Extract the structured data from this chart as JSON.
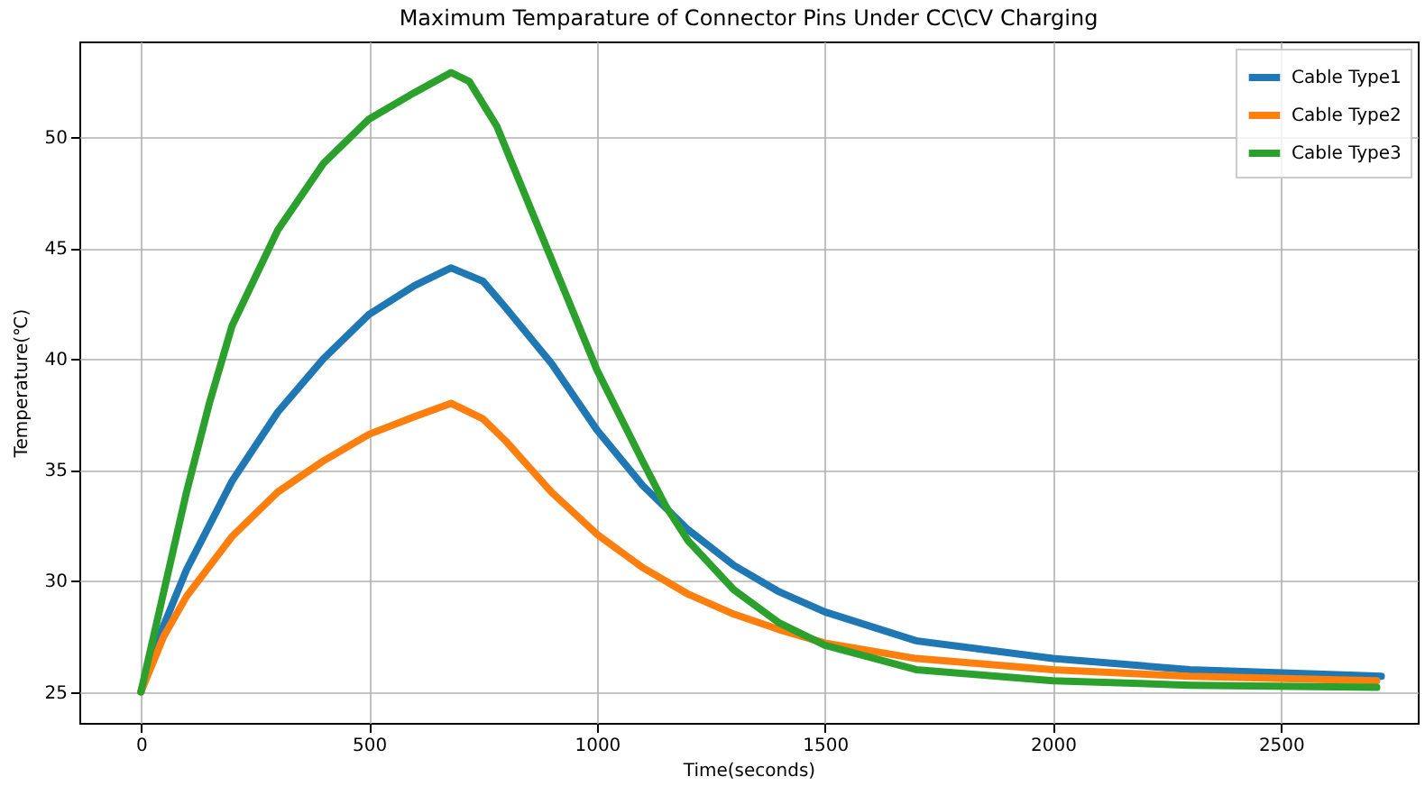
{
  "chart_data": {
    "type": "line",
    "title": "Maximum Temparature of Connector Pins Under CC\\CV Charging",
    "xlabel": "Time(seconds)",
    "ylabel": "Temperature(℃)",
    "xlim": [
      -135,
      2800
    ],
    "xticks": [
      0,
      500,
      1000,
      1500,
      2000,
      2500
    ],
    "ylim": [
      23.6,
      54.3
    ],
    "yticks": [
      25,
      30,
      35,
      40,
      45,
      50
    ],
    "grid": true,
    "legend": "top right",
    "series": [
      {
        "name": "Cable Type1",
        "color": "#1f77b4",
        "x": [
          0,
          50,
          100,
          200,
          300,
          400,
          500,
          600,
          680,
          750,
          800,
          900,
          1000,
          1100,
          1200,
          1300,
          1400,
          1500,
          1700,
          2000,
          2300,
          2720
        ],
        "values": [
          25,
          28,
          30.5,
          34.5,
          37.6,
          40,
          42,
          43.3,
          44.1,
          43.5,
          42.3,
          39.8,
          36.8,
          34.3,
          32.3,
          30.7,
          29.5,
          28.6,
          27.3,
          26.5,
          26,
          25.7
        ]
      },
      {
        "name": "Cable Type2",
        "color": "#ff7f0e",
        "x": [
          0,
          50,
          100,
          200,
          300,
          400,
          500,
          600,
          680,
          750,
          800,
          900,
          1000,
          1100,
          1200,
          1300,
          1400,
          1500,
          1700,
          2000,
          2300,
          2710
        ],
        "values": [
          25,
          27.5,
          29.3,
          32,
          34,
          35.4,
          36.6,
          37.4,
          38,
          37.3,
          36.3,
          34,
          32.1,
          30.6,
          29.4,
          28.5,
          27.8,
          27.2,
          26.5,
          26,
          25.7,
          25.5
        ]
      },
      {
        "name": "Cable Type3",
        "color": "#2ca02c",
        "x": [
          0,
          50,
          100,
          150,
          200,
          300,
          400,
          500,
          600,
          680,
          720,
          780,
          850,
          900,
          1000,
          1100,
          1150,
          1200,
          1300,
          1400,
          1500,
          1700,
          2000,
          2300,
          2710
        ],
        "values": [
          25,
          29.5,
          34,
          38,
          41.5,
          45.8,
          48.8,
          50.8,
          52,
          52.9,
          52.5,
          50.5,
          47,
          44.5,
          39.5,
          35.4,
          33.4,
          31.8,
          29.6,
          28.1,
          27.1,
          26,
          25.5,
          25.3,
          25.2
        ]
      }
    ]
  }
}
